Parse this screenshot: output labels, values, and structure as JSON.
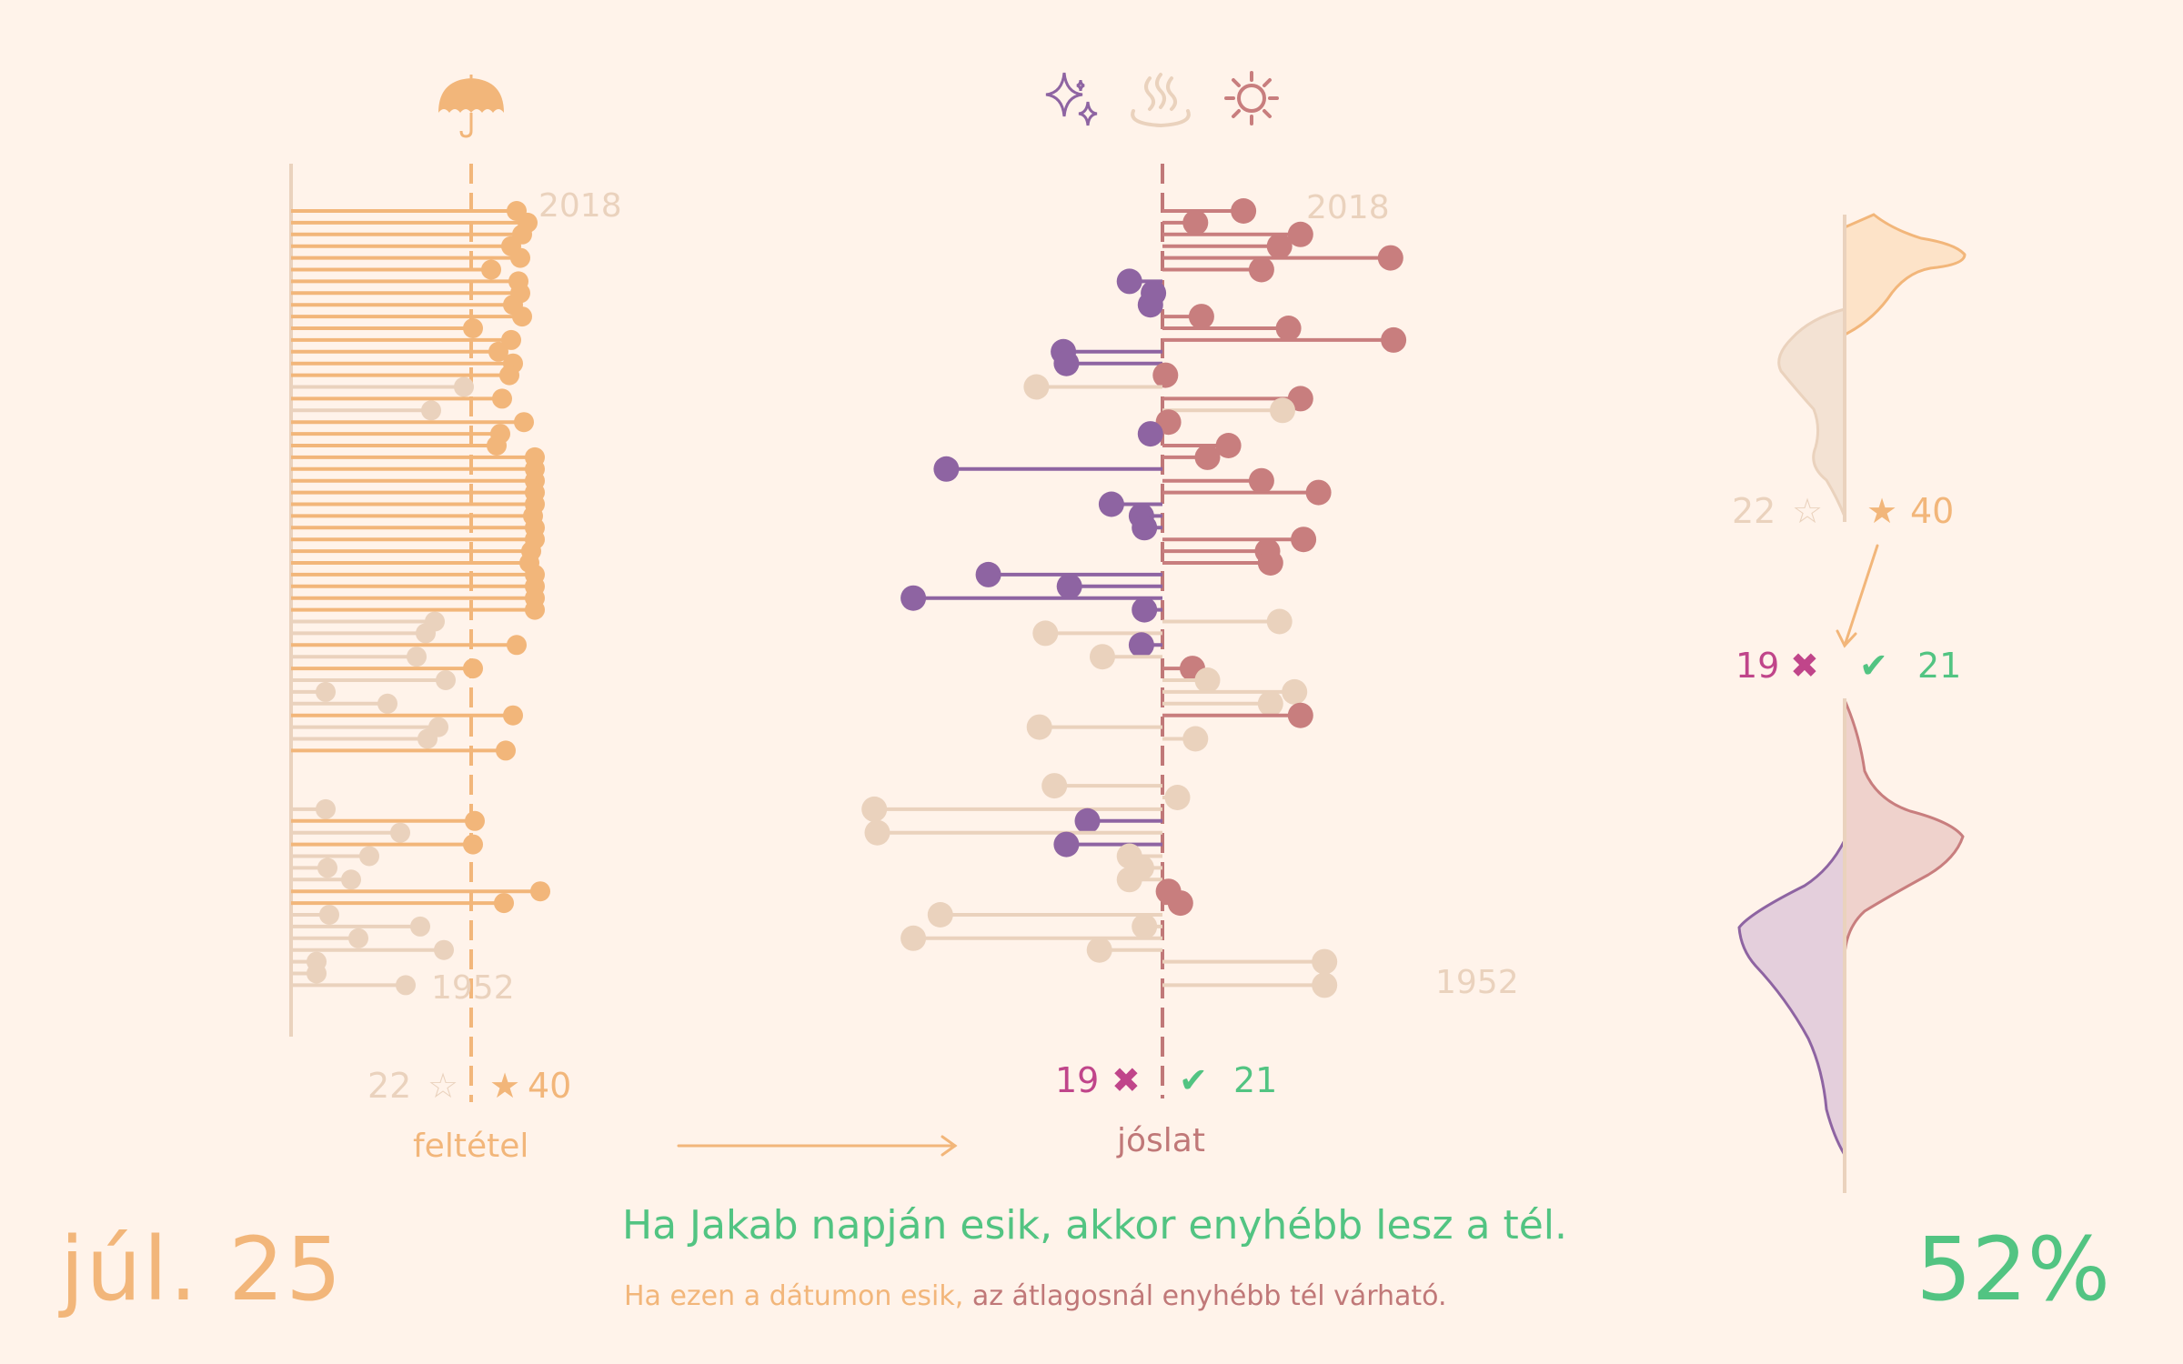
{
  "date": "júl. 25",
  "percent": "52%",
  "headline": "Ha Jakab napján esik, akkor enyhébb lesz a tél.",
  "subtitle_condition": "Ha ezen a dátumon esik,",
  "subtitle_prediction": "az átlagosnál enyhébb tél várható.",
  "labels": {
    "condition": "feltétel",
    "prediction": "jóslat",
    "year_top": "2018",
    "year_bottom": "1952"
  },
  "counts": {
    "not_met": "22",
    "met": "40",
    "wrong": "19",
    "right": "21",
    "star_empty": "☆",
    "star_full": "★",
    "cross": "✖",
    "check": "✔"
  },
  "icons": {
    "condition": "umbrella-icon",
    "prediction": [
      "sparkle-icon",
      "hot-spring-icon",
      "sun-icon"
    ]
  },
  "colors": {
    "background": "#fff3ea",
    "condition": "#f2b67a",
    "faded": "#ead2bd",
    "mild": "#c87e7e",
    "harsh": "#8e64a2",
    "right": "#52c482",
    "wrong": "#c0458a",
    "axis_condition": "#f2b67a",
    "axis_prediction": "#c07878"
  },
  "chart_data": [
    {
      "type": "lollipop",
      "title": "feltétel",
      "x_label": "",
      "y": "year",
      "ylim": [
        1952,
        2018
      ],
      "threshold_label": "feltétel",
      "summary": {
        "not_met": 22,
        "met": 40
      },
      "years": [
        2018,
        2017,
        2016,
        2015,
        2014,
        2013,
        2012,
        2011,
        2010,
        2009,
        2008,
        2007,
        2006,
        2005,
        2004,
        2003,
        2002,
        2001,
        2000,
        1999,
        1998,
        1997,
        1996,
        1995,
        1994,
        1993,
        1992,
        1991,
        1990,
        1989,
        1988,
        1987,
        1986,
        1985,
        1984,
        1983,
        1982,
        1981,
        1980,
        1979,
        1978,
        1977,
        1976,
        1975,
        1974,
        1973,
        1972,
        1971,
        1970,
        1969,
        1968,
        1967,
        1966,
        1965,
        1964,
        1963,
        1962,
        1961,
        1960,
        1959,
        1958,
        1957,
        1956,
        1955,
        1954,
        1953,
        1952
      ],
      "values": [
        1.25,
        1.55,
        1.4,
        1.1,
        1.35,
        0.55,
        1.3,
        1.35,
        1.15,
        1.4,
        0.05,
        1.1,
        0.75,
        1.15,
        1.05,
        -0.2,
        0.85,
        -1.1,
        1.45,
        0.8,
        0.7,
        1.75,
        1.75,
        1.75,
        1.75,
        1.75,
        1.7,
        1.75,
        1.75,
        1.65,
        1.6,
        1.75,
        1.75,
        1.75,
        1.75,
        -1.0,
        -1.25,
        1.25,
        -1.5,
        0.05,
        -0.7,
        -4.0,
        -2.3,
        1.15,
        -0.9,
        -1.2,
        0.95,
        null,
        null,
        null,
        null,
        -4.0,
        0.1,
        -1.95,
        0.05,
        -2.8,
        -3.95,
        -3.3,
        1.9,
        0.9,
        -3.9,
        -1.4,
        -3.1,
        -0.75,
        -4.25,
        -4.25,
        -1.8
      ]
    },
    {
      "type": "lollipop",
      "title": "jóslat",
      "x_label": "",
      "y": "year",
      "ylim": [
        1952,
        2018
      ],
      "threshold_label": "jóslat",
      "summary": {
        "wrong": 19,
        "right": 21
      },
      "years": [
        2018,
        2017,
        2016,
        2015,
        2014,
        2013,
        2012,
        2011,
        2010,
        2009,
        2008,
        2007,
        2006,
        2005,
        2004,
        2003,
        2002,
        2001,
        2000,
        1999,
        1998,
        1997,
        1996,
        1995,
        1994,
        1993,
        1992,
        1991,
        1990,
        1989,
        1988,
        1987,
        1986,
        1985,
        1984,
        1983,
        1982,
        1981,
        1980,
        1979,
        1978,
        1977,
        1976,
        1975,
        1974,
        1973,
        1972,
        1971,
        1970,
        1969,
        1968,
        1967,
        1966,
        1965,
        1964,
        1963,
        1962,
        1961,
        1960,
        1959,
        1958,
        1957,
        1956,
        1955,
        1954,
        1953,
        1952
      ],
      "values": [
        1.35,
        0.55,
        2.3,
        1.95,
        3.8,
        1.65,
        -0.55,
        -0.15,
        -0.2,
        0.65,
        2.1,
        3.85,
        -1.65,
        -1.6,
        0.05,
        -2.1,
        2.3,
        2.0,
        0.1,
        -0.2,
        1.1,
        0.75,
        -3.6,
        1.65,
        2.6,
        -0.85,
        -0.35,
        -0.3,
        2.35,
        1.75,
        1.8,
        -2.9,
        -1.55,
        -4.15,
        -0.3,
        1.95,
        -1.95,
        -0.35,
        -1.0,
        0.5,
        0.75,
        2.2,
        1.8,
        2.3,
        -2.05,
        0.55,
        null,
        null,
        null,
        -1.8,
        0.25,
        -4.8,
        -1.25,
        -4.75,
        -1.6,
        -0.55,
        -0.35,
        -0.55,
        0.1,
        0.3,
        -3.7,
        -0.3,
        -4.15,
        -1.05,
        2.7,
        null,
        2.7
      ]
    },
    {
      "type": "area",
      "title": "",
      "description_values": "distribution of condition",
      "summary": {
        "not_met": 22,
        "met": 40
      }
    },
    {
      "type": "area",
      "title": "",
      "description_values": "distribution of prediction",
      "summary": {
        "wrong": 19,
        "right": 21
      }
    }
  ]
}
